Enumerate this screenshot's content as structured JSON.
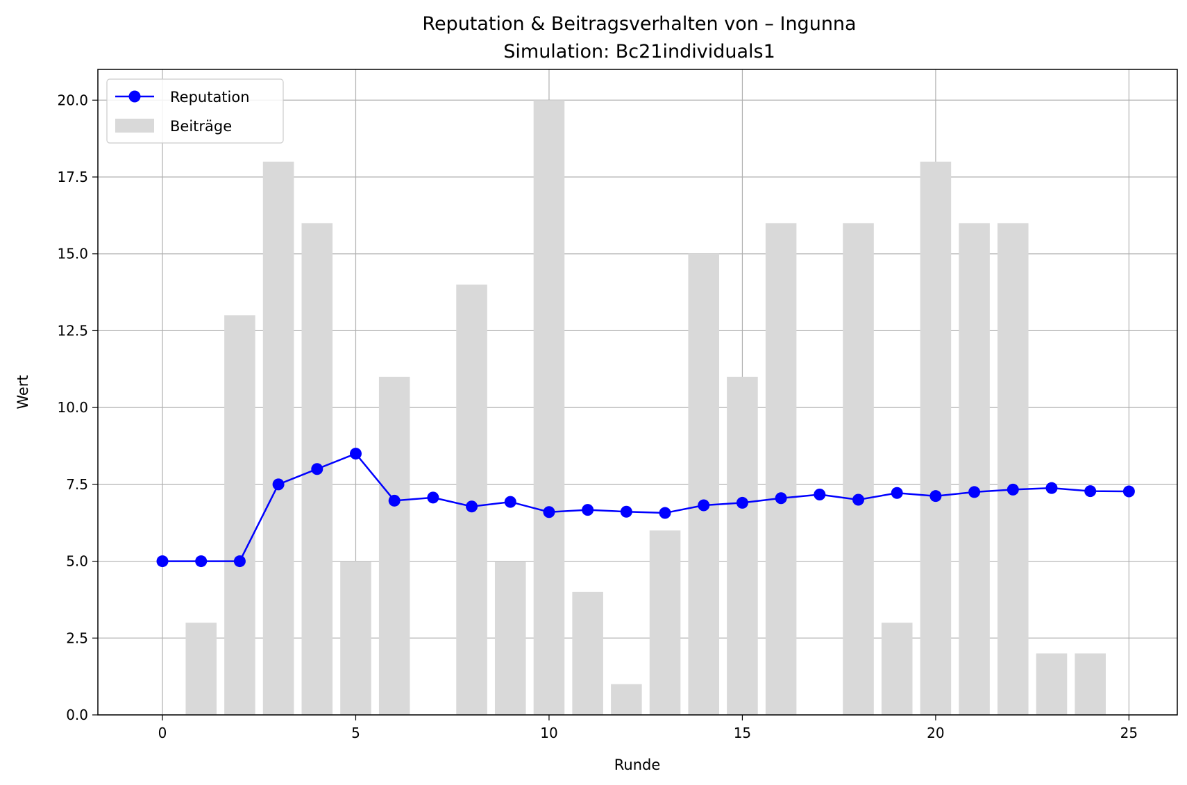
{
  "chart_data": {
    "type": "bar+line",
    "title": "Reputation & Beitragsverhalten von – Ingunna",
    "subtitle": "Simulation: Bc21individuals1",
    "xlabel": "Runde",
    "ylabel": "Wert",
    "xlim": [
      -1.67,
      26.25
    ],
    "ylim": [
      0,
      21
    ],
    "x_ticks": [
      0,
      5,
      10,
      15,
      20,
      25
    ],
    "y_ticks": [
      0.0,
      2.5,
      5.0,
      7.5,
      10.0,
      12.5,
      15.0,
      17.5,
      20.0
    ],
    "grid": true,
    "legend_position": "top-left",
    "x": [
      0,
      1,
      2,
      3,
      4,
      5,
      6,
      7,
      8,
      9,
      10,
      11,
      12,
      13,
      14,
      15,
      16,
      17,
      18,
      19,
      20,
      21,
      22,
      23,
      24,
      25
    ],
    "series": [
      {
        "name": "Reputation",
        "kind": "line",
        "color": "#0000ff",
        "values": [
          5.0,
          5.0,
          5.0,
          7.5,
          8.0,
          8.5,
          6.97,
          7.07,
          6.78,
          6.93,
          6.6,
          6.67,
          6.61,
          6.57,
          6.82,
          6.9,
          7.05,
          7.17,
          7.0,
          7.22,
          7.12,
          7.25,
          7.33,
          7.38,
          7.28,
          7.27
        ]
      },
      {
        "name": "Beiträge",
        "kind": "bar",
        "color": "#d9d9d9",
        "values": [
          0,
          3,
          13,
          18,
          16,
          5,
          11,
          0,
          14,
          5,
          20,
          4,
          1,
          6,
          15,
          11,
          16,
          0,
          16,
          3,
          18,
          16,
          16,
          2,
          2,
          0
        ]
      }
    ]
  }
}
